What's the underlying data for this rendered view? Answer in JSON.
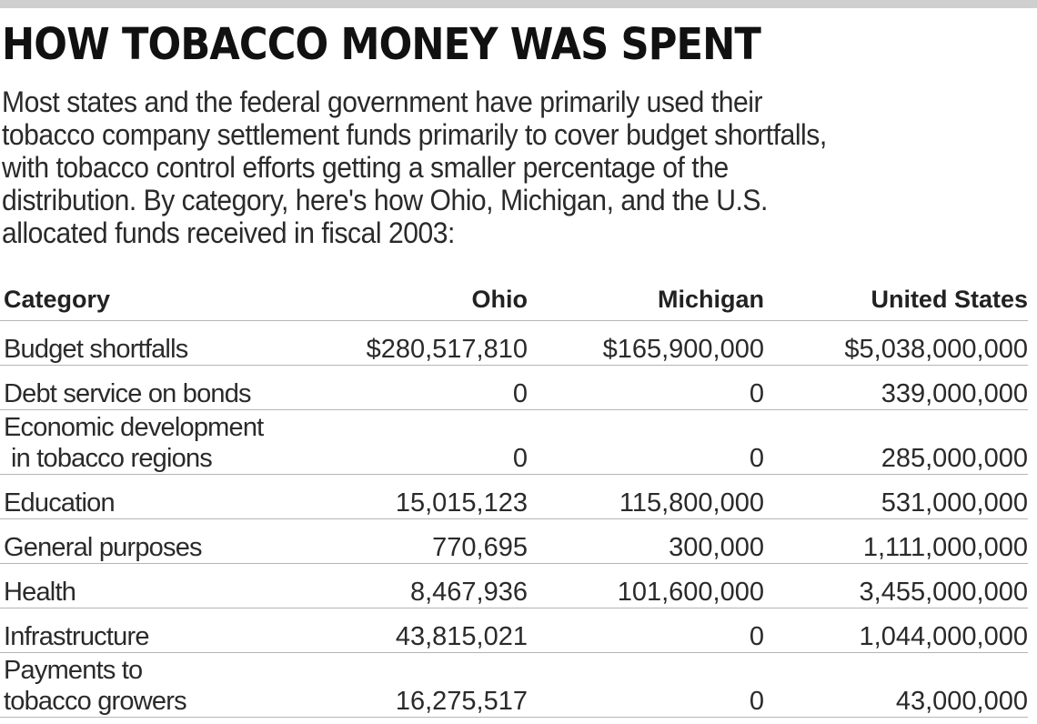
{
  "headline": "HOW TOBACCO MONEY WAS SPENT",
  "intro_lines": [
    "Most states and the federal government have primarily used their",
    "tobacco company settlement funds primarily to cover budget shortfalls,",
    "with tobacco control efforts getting a smaller percentage of the",
    "distribution. By category, here's how Ohio, Michigan, and the U.S.",
    "allocated funds received in fiscal 2003:"
  ],
  "table": {
    "headers": [
      "Category",
      "Ohio",
      "Michigan",
      "United States"
    ],
    "rows": [
      {
        "category": [
          "Budget shortfalls"
        ],
        "ohio": "$280,517,810",
        "michigan": "$165,900,000",
        "us": "$5,038,000,000"
      },
      {
        "category": [
          "Debt service on bonds"
        ],
        "ohio": "0",
        "michigan": "0",
        "us": "339,000,000"
      },
      {
        "category": [
          "Economic development",
          "in tobacco regions"
        ],
        "ohio": "0",
        "michigan": "0",
        "us": "285,000,000"
      },
      {
        "category": [
          "Education"
        ],
        "ohio": "15,015,123",
        "michigan": "115,800,000",
        "us": "531,000,000"
      },
      {
        "category": [
          "General purposes"
        ],
        "ohio": "770,695",
        "michigan": "300,000",
        "us": "1,111,000,000"
      },
      {
        "category": [
          "Health"
        ],
        "ohio": "8,467,936",
        "michigan": "101,600,000",
        "us": "3,455,000,000"
      },
      {
        "category": [
          "Infrastructure"
        ],
        "ohio": "43,815,021",
        "michigan": "0",
        "us": "1,044,000,000"
      },
      {
        "category": [
          "Payments to",
          "tobacco growers"
        ],
        "ohio": "16,275,517",
        "michigan": "0",
        "us": "43,000,000"
      }
    ]
  }
}
